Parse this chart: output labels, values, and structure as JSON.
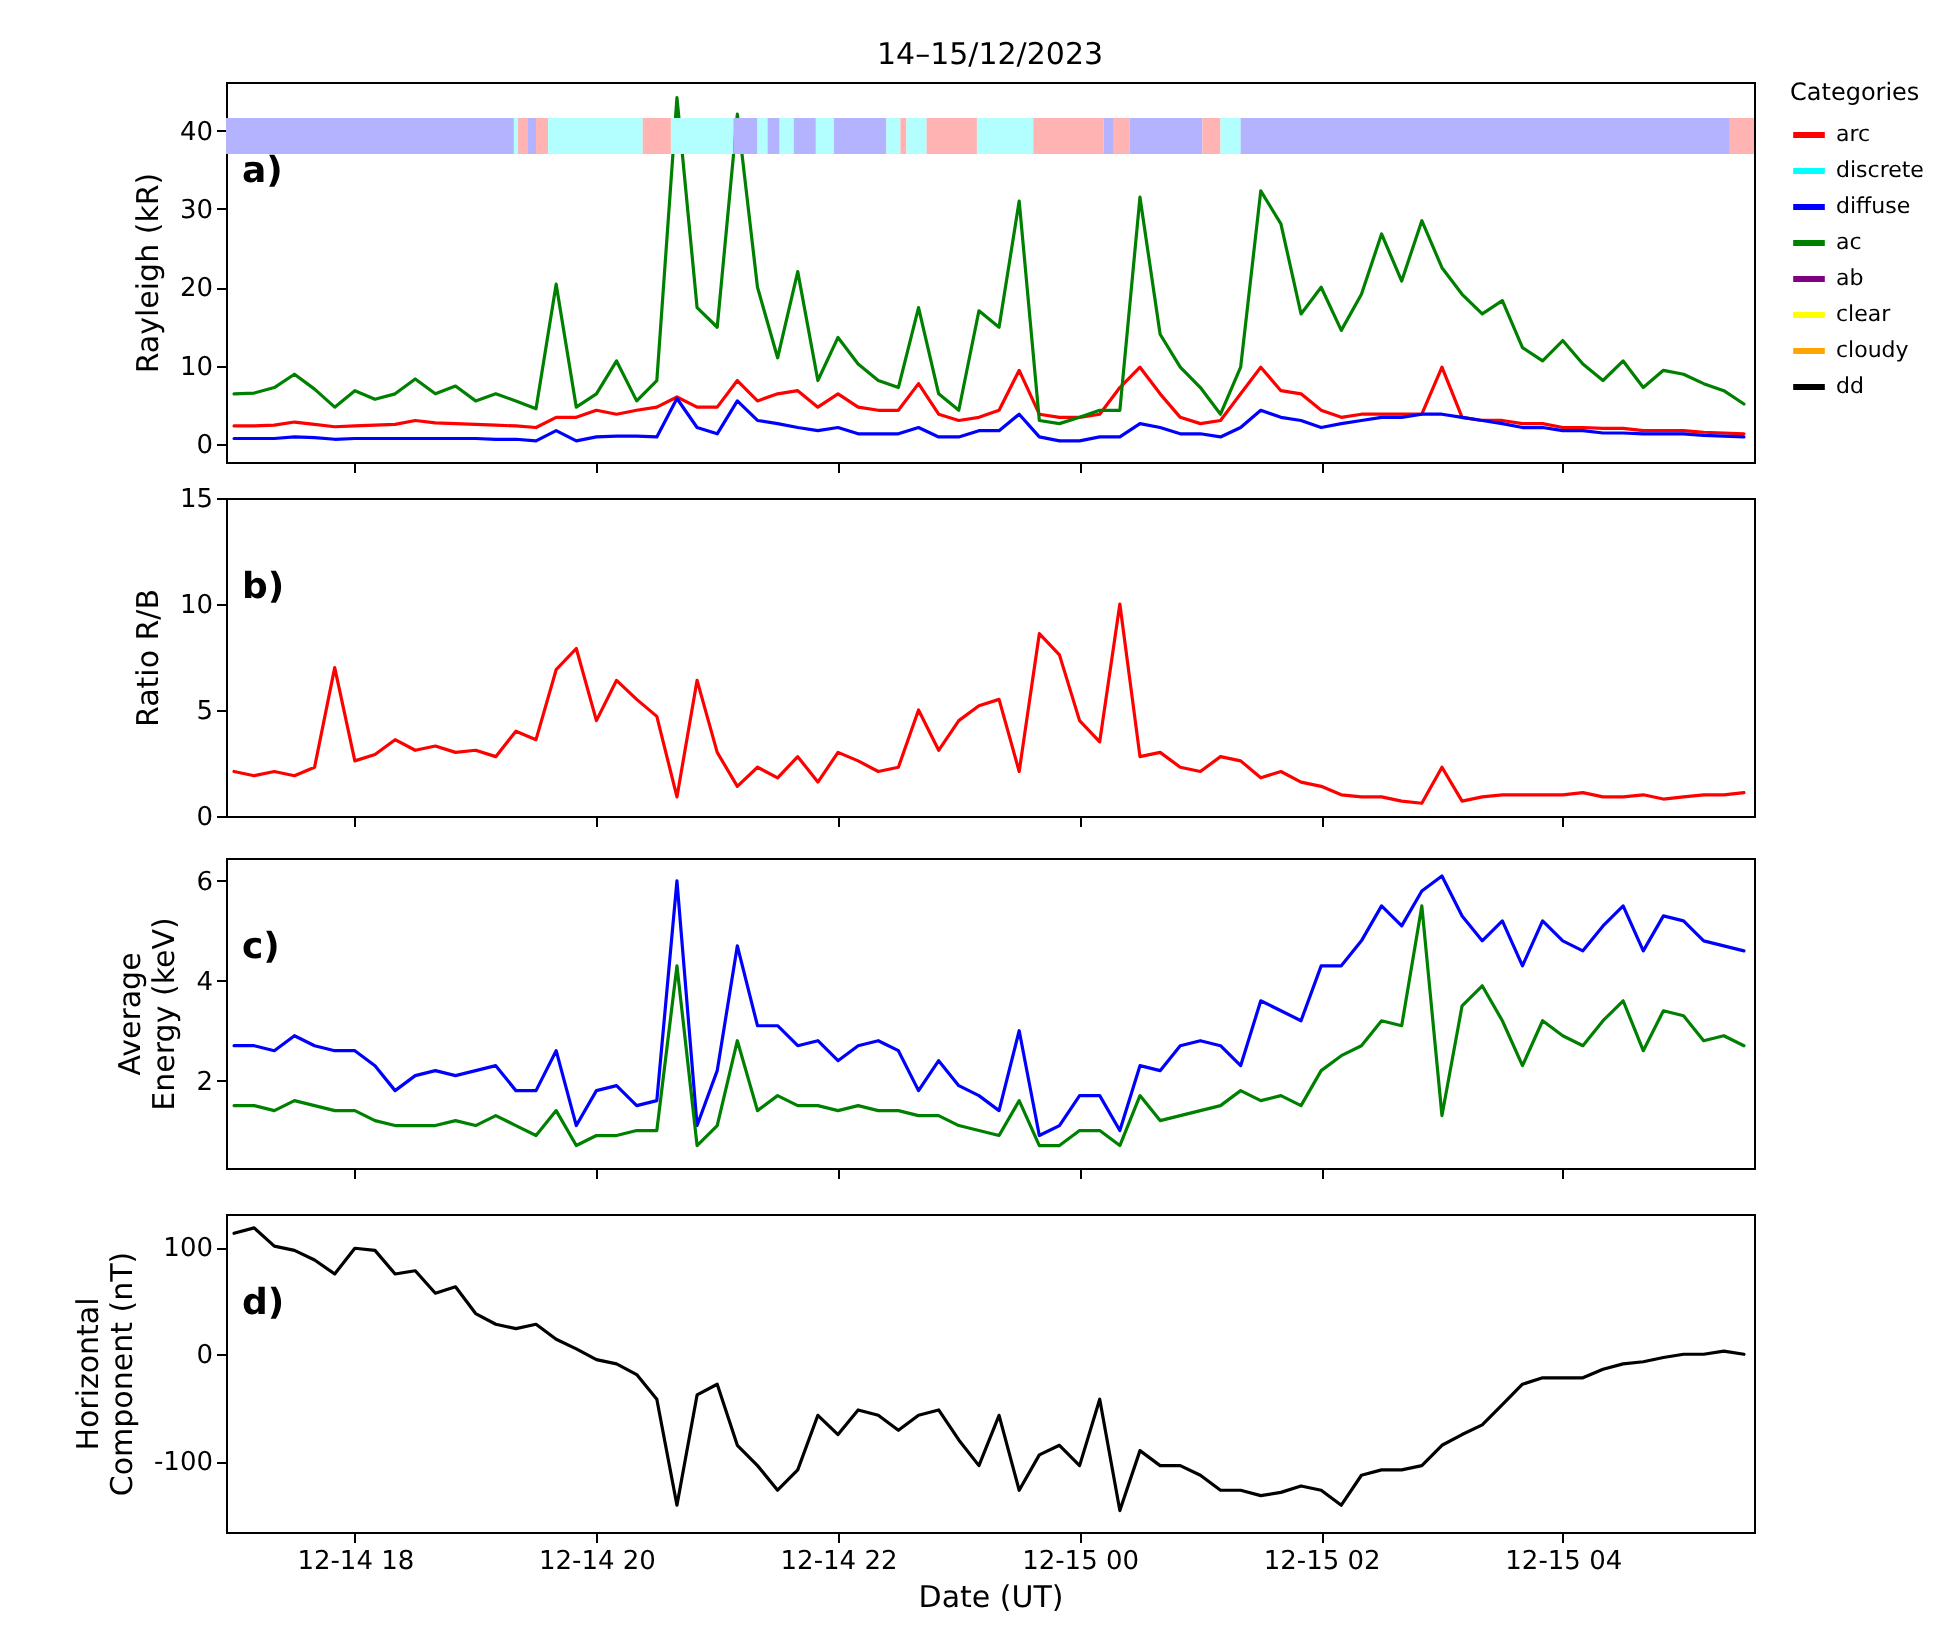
{
  "chart_data": [
    {
      "type": "line",
      "title": "14–15/12/2023",
      "ylabel": "Rayleigh (kR)",
      "annotations": [
        "a)"
      ],
      "legend": "right",
      "legend_title": "Categories",
      "tick_labels": "y",
      "xlim": [
        "2023-12-14T16:56",
        "2023-12-15T05:35"
      ],
      "xticks": [
        {
          "value": "2023-12-14T18:00",
          "label": null
        },
        {
          "value": "2023-12-14T20:00",
          "label": null
        },
        {
          "value": "2023-12-14T22:00",
          "label": null
        },
        {
          "value": "2023-12-15T00:00",
          "label": null
        },
        {
          "value": "2023-12-15T02:00",
          "label": null
        },
        {
          "value": "2023-12-15T04:00",
          "label": null
        }
      ],
      "ylim": [
        -2.3,
        46.2
      ],
      "yticks": [
        0,
        10,
        20,
        30,
        40
      ],
      "x": [
        "2023-12-14T17:00",
        "2023-12-14T17:10",
        "2023-12-14T17:20",
        "2023-12-14T17:30",
        "2023-12-14T17:40",
        "2023-12-14T17:50",
        "2023-12-14T18:00",
        "2023-12-14T18:10",
        "2023-12-14T18:20",
        "2023-12-14T18:30",
        "2023-12-14T18:40",
        "2023-12-14T18:50",
        "2023-12-14T19:00",
        "2023-12-14T19:10",
        "2023-12-14T19:20",
        "2023-12-14T19:30",
        "2023-12-14T19:40",
        "2023-12-14T19:50",
        "2023-12-14T20:00",
        "2023-12-14T20:10",
        "2023-12-14T20:20",
        "2023-12-14T20:30",
        "2023-12-14T20:40",
        "2023-12-14T20:50",
        "2023-12-14T21:00",
        "2023-12-14T21:10",
        "2023-12-14T21:20",
        "2023-12-14T21:30",
        "2023-12-14T21:40",
        "2023-12-14T21:50",
        "2023-12-14T22:00",
        "2023-12-14T22:10",
        "2023-12-14T22:20",
        "2023-12-14T22:30",
        "2023-12-14T22:40",
        "2023-12-14T22:50",
        "2023-12-14T23:00",
        "2023-12-14T23:10",
        "2023-12-14T23:20",
        "2023-12-14T23:30",
        "2023-12-14T23:40",
        "2023-12-14T23:50",
        "2023-12-15T00:00",
        "2023-12-15T00:10",
        "2023-12-15T00:20",
        "2023-12-15T00:30",
        "2023-12-15T00:40",
        "2023-12-15T00:50",
        "2023-12-15T01:00",
        "2023-12-15T01:10",
        "2023-12-15T01:20",
        "2023-12-15T01:30",
        "2023-12-15T01:40",
        "2023-12-15T01:50",
        "2023-12-15T02:00",
        "2023-12-15T02:10",
        "2023-12-15T02:20",
        "2023-12-15T02:30",
        "2023-12-15T02:40",
        "2023-12-15T02:50",
        "2023-12-15T03:00",
        "2023-12-15T03:10",
        "2023-12-15T03:20",
        "2023-12-15T03:30",
        "2023-12-15T03:40",
        "2023-12-15T03:50",
        "2023-12-15T04:00",
        "2023-12-15T04:10",
        "2023-12-15T04:20",
        "2023-12-15T04:30",
        "2023-12-15T04:40",
        "2023-12-15T04:50",
        "2023-12-15T05:00",
        "2023-12-15T05:10",
        "2023-12-15T05:20",
        "2023-12-15T05:30"
      ],
      "series": [
        {
          "name": "arc",
          "color": "#ff0000",
          "values": [
            2.3,
            2.3,
            2.4,
            2.8,
            2.5,
            2.2,
            2.3,
            2.4,
            2.5,
            3,
            2.7,
            2.6,
            2.5,
            2.4,
            2.3,
            2.1,
            3.4,
            3.4,
            4.3,
            3.8,
            4.3,
            4.7,
            6,
            4.7,
            4.7,
            8.1,
            5.5,
            6.4,
            6.8,
            4.7,
            6.4,
            4.7,
            4.3,
            4.3,
            7.7,
            3.8,
            3,
            3.4,
            4.3,
            9.4,
            3.8,
            3.4,
            3.4,
            3.8,
            7.2,
            9.8,
            6.4,
            3.4,
            2.6,
            3,
            6.4,
            9.8,
            6.8,
            6.4,
            4.3,
            3.4,
            3.8,
            3.8,
            3.8,
            3.8,
            9.8,
            3.4,
            3,
            3,
            2.6,
            2.6,
            2.1,
            2.1,
            2,
            2,
            1.7,
            1.7,
            1.7,
            1.5,
            1.4,
            1.3
          ]
        },
        {
          "name": "discrete",
          "color": "#00ffff",
          "values": [
            null,
            null,
            null,
            null,
            null,
            null,
            null,
            null,
            null,
            null,
            null,
            null,
            null,
            null,
            null,
            null,
            null,
            null,
            null,
            null,
            null,
            null,
            null,
            null,
            null,
            null,
            null,
            null,
            null,
            null,
            null,
            null,
            null,
            null,
            null,
            null,
            null,
            null,
            null,
            null,
            null,
            null,
            null,
            null,
            null,
            null,
            null,
            null,
            null,
            null,
            null,
            null,
            null,
            null,
            null,
            null,
            null,
            null,
            null,
            null,
            null,
            null,
            null,
            null,
            null,
            null,
            null,
            null,
            null,
            null,
            null,
            null,
            null,
            null,
            null,
            null
          ]
        },
        {
          "name": "diffuse",
          "color": "#0000ff",
          "values": [
            0.7,
            0.7,
            0.7,
            0.9,
            0.8,
            0.6,
            0.7,
            0.7,
            0.7,
            0.7,
            0.7,
            0.7,
            0.7,
            0.6,
            0.6,
            0.4,
            1.7,
            0.4,
            0.9,
            1,
            1,
            0.9,
            5.8,
            2.1,
            1.3,
            5.5,
            3,
            2.6,
            2.1,
            1.7,
            2.1,
            1.3,
            1.3,
            1.3,
            2.1,
            0.9,
            0.9,
            1.7,
            1.7,
            3.8,
            0.9,
            0.4,
            0.4,
            0.9,
            0.9,
            2.6,
            2.1,
            1.3,
            1.3,
            0.9,
            2.1,
            4.3,
            3.4,
            3,
            2.1,
            2.6,
            3,
            3.4,
            3.4,
            3.8,
            3.8,
            3.4,
            3,
            2.6,
            2.1,
            2.1,
            1.7,
            1.7,
            1.4,
            1.4,
            1.3,
            1.3,
            1.3,
            1.1,
            1,
            0.9
          ]
        },
        {
          "name": "ac",
          "color": "#008000",
          "values": [
            6.4,
            6.5,
            7.2,
            8.9,
            7,
            4.7,
            6.8,
            5.7,
            6.4,
            8.3,
            6.4,
            7.4,
            5.5,
            6.4,
            5.5,
            4.5,
            20.4,
            4.7,
            6.4,
            10.6,
            5.5,
            8.1,
            44.2,
            17.4,
            14.9,
            42.1,
            20,
            11,
            22,
            8.1,
            13.6,
            10.2,
            8.1,
            7.2,
            17.4,
            6.4,
            4.3,
            17,
            14.9,
            31,
            3,
            2.6,
            3.4,
            4.3,
            4.3,
            31.5,
            14,
            9.8,
            7.2,
            3.8,
            9.8,
            32.3,
            28.1,
            16.6,
            20,
            14.5,
            19.1,
            26.8,
            20.8,
            28.5,
            22.5,
            19.1,
            16.6,
            18.3,
            12.3,
            10.6,
            13.2,
            10.2,
            8.1,
            10.6,
            7.2,
            9.4,
            8.9,
            7.7,
            6.8,
            5.1
          ]
        },
        {
          "name": "ab",
          "color": "#800080",
          "values": [
            null,
            null,
            null,
            null,
            null,
            null,
            null,
            null,
            null,
            null,
            null,
            null,
            null,
            null,
            null,
            null,
            null,
            null,
            null,
            null,
            null,
            null,
            null,
            null,
            null,
            null,
            null,
            null,
            null,
            null,
            null,
            null,
            null,
            null,
            null,
            null,
            null,
            null,
            null,
            null,
            null,
            null,
            null,
            null,
            null,
            null,
            null,
            null,
            null,
            null,
            null,
            null,
            null,
            null,
            null,
            null,
            null,
            null,
            null,
            null,
            null,
            null,
            null,
            null,
            null,
            null,
            null,
            null,
            null,
            null,
            null,
            null,
            null,
            null,
            null,
            null
          ]
        },
        {
          "name": "clear",
          "color": "#ffff00",
          "values": [
            null,
            null,
            null,
            null,
            null,
            null,
            null,
            null,
            null,
            null,
            null,
            null,
            null,
            null,
            null,
            null,
            null,
            null,
            null,
            null,
            null,
            null,
            null,
            null,
            null,
            null,
            null,
            null,
            null,
            null,
            null,
            null,
            null,
            null,
            null,
            null,
            null,
            null,
            null,
            null,
            null,
            null,
            null,
            null,
            null,
            null,
            null,
            null,
            null,
            null,
            null,
            null,
            null,
            null,
            null,
            null,
            null,
            null,
            null,
            null,
            null,
            null,
            null,
            null,
            null,
            null,
            null,
            null,
            null,
            null,
            null,
            null,
            null,
            null,
            null,
            null
          ]
        },
        {
          "name": "cloudy",
          "color": "#ffa500",
          "values": [
            null,
            null,
            null,
            null,
            null,
            null,
            null,
            null,
            null,
            null,
            null,
            null,
            null,
            null,
            null,
            null,
            null,
            null,
            null,
            null,
            null,
            null,
            null,
            null,
            null,
            null,
            null,
            null,
            null,
            null,
            null,
            null,
            null,
            null,
            null,
            null,
            null,
            null,
            null,
            null,
            null,
            null,
            null,
            null,
            null,
            null,
            null,
            null,
            null,
            null,
            null,
            null,
            null,
            null,
            null,
            null,
            null,
            null,
            null,
            null,
            null,
            null,
            null,
            null,
            null,
            null,
            null,
            null,
            null,
            null,
            null,
            null,
            null,
            null,
            null,
            null
          ]
        },
        {
          "name": "dd",
          "color": "#000000",
          "values": [
            null,
            null,
            null,
            null,
            null,
            null,
            null,
            null,
            null,
            null,
            null,
            null,
            null,
            null,
            null,
            null,
            null,
            null,
            null,
            null,
            null,
            null,
            null,
            null,
            null,
            null,
            null,
            null,
            null,
            null,
            null,
            null,
            null,
            null,
            null,
            null,
            null,
            null,
            null,
            null,
            null,
            null,
            null,
            null,
            null,
            null,
            null,
            null,
            null,
            null,
            null,
            null,
            null,
            null,
            null,
            null,
            null,
            null,
            null,
            null,
            null,
            null,
            null,
            null,
            null,
            null,
            null,
            null,
            null,
            null,
            null,
            null,
            null,
            null,
            null,
            null
          ]
        }
      ],
      "bands": [
        {
          "axis": "x",
          "from": "2023-12-14T16:56",
          "to": "2023-12-14T19:19",
          "color": "#b3b3ff"
        },
        {
          "axis": "x",
          "from": "2023-12-14T19:19",
          "to": "2023-12-14T19:21",
          "color": "#b3ffff"
        },
        {
          "axis": "x",
          "from": "2023-12-14T19:21",
          "to": "2023-12-14T19:26",
          "color": "#ffb3b3"
        },
        {
          "axis": "x",
          "from": "2023-12-14T19:26",
          "to": "2023-12-14T19:30",
          "color": "#b3b3ff"
        },
        {
          "axis": "x",
          "from": "2023-12-14T19:30",
          "to": "2023-12-14T19:36",
          "color": "#ffb3b3"
        },
        {
          "axis": "x",
          "from": "2023-12-14T19:36",
          "to": "2023-12-14T20:23",
          "color": "#b3ffff"
        },
        {
          "axis": "x",
          "from": "2023-12-14T20:23",
          "to": "2023-12-14T20:37",
          "color": "#ffb3b3"
        },
        {
          "axis": "x",
          "from": "2023-12-14T20:37",
          "to": "2023-12-14T21:08",
          "color": "#b3ffff"
        },
        {
          "axis": "x",
          "from": "2023-12-14T21:08",
          "to": "2023-12-14T21:20",
          "color": "#b3b3ff"
        },
        {
          "axis": "x",
          "from": "2023-12-14T21:20",
          "to": "2023-12-14T21:25",
          "color": "#b3ffff"
        },
        {
          "axis": "x",
          "from": "2023-12-14T21:25",
          "to": "2023-12-14T21:31",
          "color": "#b3b3ff"
        },
        {
          "axis": "x",
          "from": "2023-12-14T21:31",
          "to": "2023-12-14T21:38",
          "color": "#b3ffff"
        },
        {
          "axis": "x",
          "from": "2023-12-14T21:38",
          "to": "2023-12-14T21:49",
          "color": "#b3b3ff"
        },
        {
          "axis": "x",
          "from": "2023-12-14T21:49",
          "to": "2023-12-14T21:58",
          "color": "#b3ffff"
        },
        {
          "axis": "x",
          "from": "2023-12-14T21:58",
          "to": "2023-12-14T22:24",
          "color": "#b3b3ff"
        },
        {
          "axis": "x",
          "from": "2023-12-14T22:24",
          "to": "2023-12-14T22:31",
          "color": "#b3ffff"
        },
        {
          "axis": "x",
          "from": "2023-12-14T22:31",
          "to": "2023-12-14T22:34",
          "color": "#ffb3b3"
        },
        {
          "axis": "x",
          "from": "2023-12-14T22:34",
          "to": "2023-12-14T22:44",
          "color": "#b3ffff"
        },
        {
          "axis": "x",
          "from": "2023-12-14T22:44",
          "to": "2023-12-14T23:09",
          "color": "#ffb3b3"
        },
        {
          "axis": "x",
          "from": "2023-12-14T23:09",
          "to": "2023-12-14T23:37",
          "color": "#b3ffff"
        },
        {
          "axis": "x",
          "from": "2023-12-14T23:37",
          "to": "2023-12-15T00:12",
          "color": "#ffb3b3"
        },
        {
          "axis": "x",
          "from": "2023-12-15T00:12",
          "to": "2023-12-15T00:17",
          "color": "#b3b3ff"
        },
        {
          "axis": "x",
          "from": "2023-12-15T00:17",
          "to": "2023-12-15T00:25",
          "color": "#ffb3b3"
        },
        {
          "axis": "x",
          "from": "2023-12-15T00:25",
          "to": "2023-12-15T01:01",
          "color": "#b3b3ff"
        },
        {
          "axis": "x",
          "from": "2023-12-15T01:01",
          "to": "2023-12-15T01:10",
          "color": "#ffb3b3"
        },
        {
          "axis": "x",
          "from": "2023-12-15T01:10",
          "to": "2023-12-15T01:20",
          "color": "#b3ffff"
        },
        {
          "axis": "x",
          "from": "2023-12-15T01:20",
          "to": "2023-12-15T05:23",
          "color": "#b3b3ff"
        },
        {
          "axis": "x",
          "from": "2023-12-15T05:23",
          "to": "2023-12-15T05:35",
          "color": "#ffb3b3"
        }
      ]
    },
    {
      "type": "line",
      "ylabel": "Ratio R/B",
      "annotations": [
        "b)"
      ],
      "tick_labels": "y",
      "xlim": [
        "2023-12-14T16:56",
        "2023-12-15T05:35"
      ],
      "xticks": [
        {
          "value": "2023-12-14T18:00",
          "label": null
        },
        {
          "value": "2023-12-14T20:00",
          "label": null
        },
        {
          "value": "2023-12-14T22:00",
          "label": null
        },
        {
          "value": "2023-12-15T00:00",
          "label": null
        },
        {
          "value": "2023-12-15T02:00",
          "label": null
        },
        {
          "value": "2023-12-15T04:00",
          "label": null
        }
      ],
      "ylim": [
        0,
        15
      ],
      "yticks": [
        0,
        5,
        10,
        15
      ],
      "x": [
        "2023-12-14T17:00",
        "2023-12-14T17:10",
        "2023-12-14T17:20",
        "2023-12-14T17:30",
        "2023-12-14T17:40",
        "2023-12-14T17:50",
        "2023-12-14T18:00",
        "2023-12-14T18:10",
        "2023-12-14T18:20",
        "2023-12-14T18:30",
        "2023-12-14T18:40",
        "2023-12-14T18:50",
        "2023-12-14T19:00",
        "2023-12-14T19:10",
        "2023-12-14T19:20",
        "2023-12-14T19:30",
        "2023-12-14T19:40",
        "2023-12-14T19:50",
        "2023-12-14T20:00",
        "2023-12-14T20:10",
        "2023-12-14T20:20",
        "2023-12-14T20:30",
        "2023-12-14T20:40",
        "2023-12-14T20:50",
        "2023-12-14T21:00",
        "2023-12-14T21:10",
        "2023-12-14T21:20",
        "2023-12-14T21:30",
        "2023-12-14T21:40",
        "2023-12-14T21:50",
        "2023-12-14T22:00",
        "2023-12-14T22:10",
        "2023-12-14T22:20",
        "2023-12-14T22:30",
        "2023-12-14T22:40",
        "2023-12-14T22:50",
        "2023-12-14T23:00",
        "2023-12-14T23:10",
        "2023-12-14T23:20",
        "2023-12-14T23:30",
        "2023-12-14T23:40",
        "2023-12-14T23:50",
        "2023-12-15T00:00",
        "2023-12-15T00:10",
        "2023-12-15T00:20",
        "2023-12-15T00:30",
        "2023-12-15T00:40",
        "2023-12-15T00:50",
        "2023-12-15T01:00",
        "2023-12-15T01:10",
        "2023-12-15T01:20",
        "2023-12-15T01:30",
        "2023-12-15T01:40",
        "2023-12-15T01:50",
        "2023-12-15T02:00",
        "2023-12-15T02:10",
        "2023-12-15T02:20",
        "2023-12-15T02:30",
        "2023-12-15T02:40",
        "2023-12-15T02:50",
        "2023-12-15T03:00",
        "2023-12-15T03:10",
        "2023-12-15T03:20",
        "2023-12-15T03:30",
        "2023-12-15T03:40",
        "2023-12-15T03:50",
        "2023-12-15T04:00",
        "2023-12-15T04:10",
        "2023-12-15T04:20",
        "2023-12-15T04:30",
        "2023-12-15T04:40",
        "2023-12-15T04:50",
        "2023-12-15T05:00",
        "2023-12-15T05:10",
        "2023-12-15T05:20",
        "2023-12-15T05:30"
      ],
      "series": [
        {
          "color": "#ff0000",
          "values": [
            2.1,
            1.9,
            2.1,
            1.9,
            2.3,
            7,
            2.6,
            2.9,
            3.6,
            3.1,
            3.3,
            3,
            3.1,
            2.8,
            4,
            3.6,
            6.9,
            7.9,
            4.5,
            6.4,
            5.5,
            4.7,
            0.9,
            6.4,
            3,
            1.4,
            2.3,
            1.8,
            2.8,
            1.6,
            3,
            2.6,
            2.1,
            2.3,
            5,
            3.1,
            4.5,
            5.2,
            5.5,
            2.1,
            8.6,
            7.6,
            4.5,
            3.5,
            10,
            2.8,
            3,
            2.3,
            2.1,
            2.8,
            2.6,
            1.8,
            2.1,
            1.6,
            1.4,
            1,
            0.9,
            0.9,
            0.7,
            0.6,
            2.3,
            0.7,
            0.9,
            1,
            1,
            1,
            1,
            1.1,
            0.9,
            0.9,
            1,
            0.8,
            0.9,
            1,
            1,
            1.1
          ]
        }
      ]
    },
    {
      "type": "line",
      "ylabel": "Average\nEnergy (keV)",
      "annotations": [
        "c)"
      ],
      "tick_labels": "y",
      "xlim": [
        "2023-12-14T16:56",
        "2023-12-15T05:35"
      ],
      "xticks": [
        {
          "value": "2023-12-14T18:00",
          "label": null
        },
        {
          "value": "2023-12-14T20:00",
          "label": null
        },
        {
          "value": "2023-12-14T22:00",
          "label": null
        },
        {
          "value": "2023-12-15T00:00",
          "label": null
        },
        {
          "value": "2023-12-15T02:00",
          "label": null
        },
        {
          "value": "2023-12-15T04:00",
          "label": null
        }
      ],
      "ylim": [
        0.25,
        6.46
      ],
      "yticks": [
        2,
        4,
        6
      ],
      "x": [
        "2023-12-14T17:00",
        "2023-12-14T17:10",
        "2023-12-14T17:20",
        "2023-12-14T17:30",
        "2023-12-14T17:40",
        "2023-12-14T17:50",
        "2023-12-14T18:00",
        "2023-12-14T18:10",
        "2023-12-14T18:20",
        "2023-12-14T18:30",
        "2023-12-14T18:40",
        "2023-12-14T18:50",
        "2023-12-14T19:00",
        "2023-12-14T19:10",
        "2023-12-14T19:20",
        "2023-12-14T19:30",
        "2023-12-14T19:40",
        "2023-12-14T19:50",
        "2023-12-14T20:00",
        "2023-12-14T20:10",
        "2023-12-14T20:20",
        "2023-12-14T20:30",
        "2023-12-14T20:40",
        "2023-12-14T20:50",
        "2023-12-14T21:00",
        "2023-12-14T21:10",
        "2023-12-14T21:20",
        "2023-12-14T21:30",
        "2023-12-14T21:40",
        "2023-12-14T21:50",
        "2023-12-14T22:00",
        "2023-12-14T22:10",
        "2023-12-14T22:20",
        "2023-12-14T22:30",
        "2023-12-14T22:40",
        "2023-12-14T22:50",
        "2023-12-14T23:00",
        "2023-12-14T23:10",
        "2023-12-14T23:20",
        "2023-12-14T23:30",
        "2023-12-14T23:40",
        "2023-12-14T23:50",
        "2023-12-15T00:00",
        "2023-12-15T00:10",
        "2023-12-15T00:20",
        "2023-12-15T00:30",
        "2023-12-15T00:40",
        "2023-12-15T00:50",
        "2023-12-15T01:00",
        "2023-12-15T01:10",
        "2023-12-15T01:20",
        "2023-12-15T01:30",
        "2023-12-15T01:40",
        "2023-12-15T01:50",
        "2023-12-15T02:00",
        "2023-12-15T02:10",
        "2023-12-15T02:20",
        "2023-12-15T02:30",
        "2023-12-15T02:40",
        "2023-12-15T02:50",
        "2023-12-15T03:00",
        "2023-12-15T03:10",
        "2023-12-15T03:20",
        "2023-12-15T03:30",
        "2023-12-15T03:40",
        "2023-12-15T03:50",
        "2023-12-15T04:00",
        "2023-12-15T04:10",
        "2023-12-15T04:20",
        "2023-12-15T04:30",
        "2023-12-15T04:40",
        "2023-12-15T04:50",
        "2023-12-15T05:00",
        "2023-12-15T05:10",
        "2023-12-15T05:20",
        "2023-12-15T05:30"
      ],
      "series": [
        {
          "color": "#0000ff",
          "values": [
            2.7,
            2.7,
            2.6,
            2.9,
            2.7,
            2.6,
            2.6,
            2.3,
            1.8,
            2.1,
            2.2,
            2.1,
            2.2,
            2.3,
            1.8,
            1.8,
            2.6,
            1.1,
            1.8,
            1.9,
            1.5,
            1.6,
            6,
            1.1,
            2.2,
            4.7,
            3.1,
            3.1,
            2.7,
            2.8,
            2.4,
            2.7,
            2.8,
            2.6,
            1.8,
            2.4,
            1.9,
            1.7,
            1.4,
            3,
            0.9,
            1.1,
            1.7,
            1.7,
            1,
            2.3,
            2.2,
            2.7,
            2.8,
            2.7,
            2.3,
            3.6,
            3.4,
            3.2,
            4.3,
            4.3,
            4.8,
            5.5,
            5.1,
            5.8,
            6.1,
            5.3,
            4.8,
            5.2,
            4.3,
            5.2,
            4.8,
            4.6,
            5.1,
            5.5,
            4.6,
            5.3,
            5.2,
            4.8,
            4.7,
            4.6
          ]
        },
        {
          "color": "#008000",
          "values": [
            1.5,
            1.5,
            1.4,
            1.6,
            1.5,
            1.4,
            1.4,
            1.2,
            1.1,
            1.1,
            1.1,
            1.2,
            1.1,
            1.3,
            1.1,
            0.9,
            1.4,
            0.7,
            0.9,
            0.9,
            1,
            1,
            4.3,
            0.7,
            1.1,
            2.8,
            1.4,
            1.7,
            1.5,
            1.5,
            1.4,
            1.5,
            1.4,
            1.4,
            1.3,
            1.3,
            1.1,
            1,
            0.9,
            1.6,
            0.7,
            0.7,
            1,
            1,
            0.7,
            1.7,
            1.2,
            1.3,
            1.4,
            1.5,
            1.8,
            1.6,
            1.7,
            1.5,
            2.2,
            2.5,
            2.7,
            3.2,
            3.1,
            5.5,
            1.3,
            3.5,
            3.9,
            3.2,
            2.3,
            3.2,
            2.9,
            2.7,
            3.2,
            3.6,
            2.6,
            3.4,
            3.3,
            2.8,
            2.9,
            2.7
          ]
        }
      ]
    },
    {
      "type": "line",
      "ylabel": "Horizontal\nComponent (nT)",
      "xlabel": "Date (UT)",
      "annotations": [
        "d)"
      ],
      "xlim": [
        "2023-12-14T16:56",
        "2023-12-15T05:35"
      ],
      "xticks": [
        {
          "value": "2023-12-14T18:00",
          "label": "12-14 18"
        },
        {
          "value": "2023-12-14T20:00",
          "label": "12-14 20"
        },
        {
          "value": "2023-12-14T22:00",
          "label": "12-14 22"
        },
        {
          "value": "2023-12-15T00:00",
          "label": "12-15 00"
        },
        {
          "value": "2023-12-15T02:00",
          "label": "12-15 02"
        },
        {
          "value": "2023-12-15T04:00",
          "label": "12-15 04"
        }
      ],
      "ylim": [
        -166,
        131
      ],
      "yticks": [
        -100,
        0,
        100
      ],
      "x": [
        "2023-12-14T17:00",
        "2023-12-14T17:10",
        "2023-12-14T17:20",
        "2023-12-14T17:30",
        "2023-12-14T17:40",
        "2023-12-14T17:50",
        "2023-12-14T18:00",
        "2023-12-14T18:10",
        "2023-12-14T18:20",
        "2023-12-14T18:30",
        "2023-12-14T18:40",
        "2023-12-14T18:50",
        "2023-12-14T19:00",
        "2023-12-14T19:10",
        "2023-12-14T19:20",
        "2023-12-14T19:30",
        "2023-12-14T19:40",
        "2023-12-14T19:50",
        "2023-12-14T20:00",
        "2023-12-14T20:10",
        "2023-12-14T20:20",
        "2023-12-14T20:30",
        "2023-12-14T20:40",
        "2023-12-14T20:50",
        "2023-12-14T21:00",
        "2023-12-14T21:10",
        "2023-12-14T21:20",
        "2023-12-14T21:30",
        "2023-12-14T21:40",
        "2023-12-14T21:50",
        "2023-12-14T22:00",
        "2023-12-14T22:10",
        "2023-12-14T22:20",
        "2023-12-14T22:30",
        "2023-12-14T22:40",
        "2023-12-14T22:50",
        "2023-12-14T23:00",
        "2023-12-14T23:10",
        "2023-12-14T23:20",
        "2023-12-14T23:30",
        "2023-12-14T23:40",
        "2023-12-14T23:50",
        "2023-12-15T00:00",
        "2023-12-15T00:10",
        "2023-12-15T00:20",
        "2023-12-15T00:30",
        "2023-12-15T00:40",
        "2023-12-15T00:50",
        "2023-12-15T01:00",
        "2023-12-15T01:10",
        "2023-12-15T01:20",
        "2023-12-15T01:30",
        "2023-12-15T01:40",
        "2023-12-15T01:50",
        "2023-12-15T02:00",
        "2023-12-15T02:10",
        "2023-12-15T02:20",
        "2023-12-15T02:30",
        "2023-12-15T02:40",
        "2023-12-15T02:50",
        "2023-12-15T03:00",
        "2023-12-15T03:10",
        "2023-12-15T03:20",
        "2023-12-15T03:30",
        "2023-12-15T03:40",
        "2023-12-15T03:50",
        "2023-12-15T04:00",
        "2023-12-15T04:10",
        "2023-12-15T04:20",
        "2023-12-15T04:30",
        "2023-12-15T04:40",
        "2023-12-15T04:50",
        "2023-12-15T05:00",
        "2023-12-15T05:10",
        "2023-12-15T05:20",
        "2023-12-15T05:30"
      ],
      "series": [
        {
          "color": "#000000",
          "values": [
            113,
            118,
            101,
            97,
            88,
            75,
            99,
            97,
            75,
            78,
            57,
            63,
            38,
            28,
            24,
            28,
            14,
            5,
            -5,
            -9,
            -19,
            -42,
            -141,
            -38,
            -28,
            -85,
            -104,
            -127,
            -108,
            -57,
            -75,
            -52,
            -57,
            -71,
            -57,
            -52,
            -80,
            -104,
            -57,
            -127,
            -94,
            -85,
            -104,
            -42,
            -146,
            -90,
            -104,
            -104,
            -113,
            -127,
            -127,
            -132,
            -129,
            -123,
            -127,
            -141,
            -113,
            -108,
            -108,
            -104,
            -85,
            -75,
            -66,
            -47,
            -28,
            -22,
            -22,
            -22,
            -14,
            -9,
            -7,
            -3,
            0,
            0,
            3,
            0
          ]
        }
      ]
    }
  ]
}
